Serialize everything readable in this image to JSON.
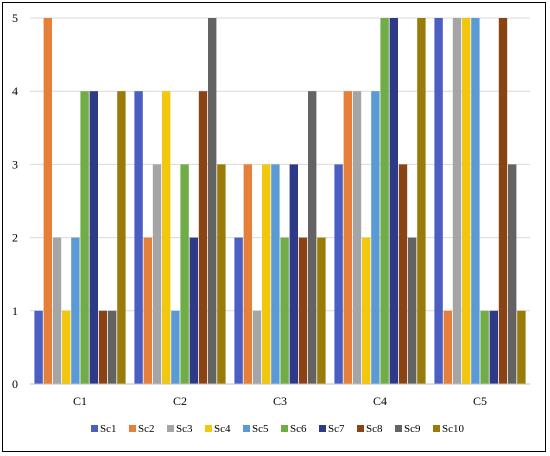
{
  "chart_data": {
    "type": "bar",
    "title": "",
    "xlabel": "",
    "ylabel": "",
    "ylim": [
      0,
      5
    ],
    "yticks": [
      "0",
      "1",
      "2",
      "3",
      "4",
      "5"
    ],
    "grid": true,
    "legend": "bottom",
    "categories": [
      "C1",
      "C2",
      "C3",
      "C4",
      "C5"
    ],
    "series": [
      {
        "name": "Sc1",
        "color": "#4a5fc1",
        "values": [
          1,
          4,
          2,
          3,
          5
        ]
      },
      {
        "name": "Sc2",
        "color": "#e57f3a",
        "values": [
          5,
          2,
          3,
          4,
          1
        ]
      },
      {
        "name": "Sc3",
        "color": "#a5a5a5",
        "values": [
          2,
          3,
          1,
          4,
          5
        ]
      },
      {
        "name": "Sc4",
        "color": "#f2c80f",
        "values": [
          1,
          4,
          3,
          2,
          5
        ]
      },
      {
        "name": "Sc5",
        "color": "#5b9bd5",
        "values": [
          2,
          1,
          3,
          4,
          5
        ]
      },
      {
        "name": "Sc6",
        "color": "#70ad47",
        "values": [
          4,
          3,
          2,
          5,
          1
        ]
      },
      {
        "name": "Sc7",
        "color": "#2e3a87",
        "values": [
          4,
          2,
          3,
          5,
          1
        ]
      },
      {
        "name": "Sc8",
        "color": "#8a4414",
        "values": [
          1,
          4,
          2,
          3,
          5
        ]
      },
      {
        "name": "Sc9",
        "color": "#636363",
        "values": [
          1,
          5,
          4,
          2,
          3
        ]
      },
      {
        "name": "Sc10",
        "color": "#9a7b0a",
        "values": [
          4,
          3,
          2,
          5,
          1
        ]
      }
    ]
  }
}
